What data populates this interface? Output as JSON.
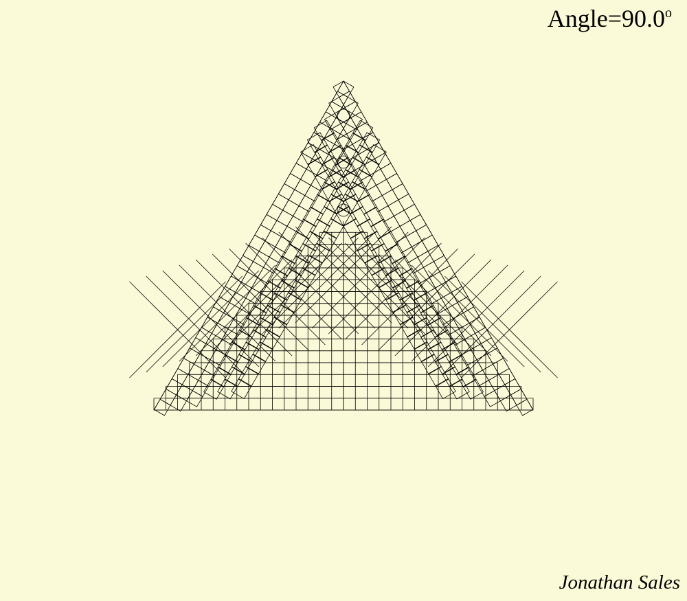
{
  "angle_label": {
    "prefix": "Angle=",
    "value": "90.0",
    "unit": "o"
  },
  "author": "Jonathan Sales",
  "colors": {
    "background": "#fbfad8",
    "stroke": "#000000"
  },
  "figure": {
    "shape": "equilateral-triangle",
    "tiling": "squares",
    "branch_angle_degrees": 90.0
  }
}
